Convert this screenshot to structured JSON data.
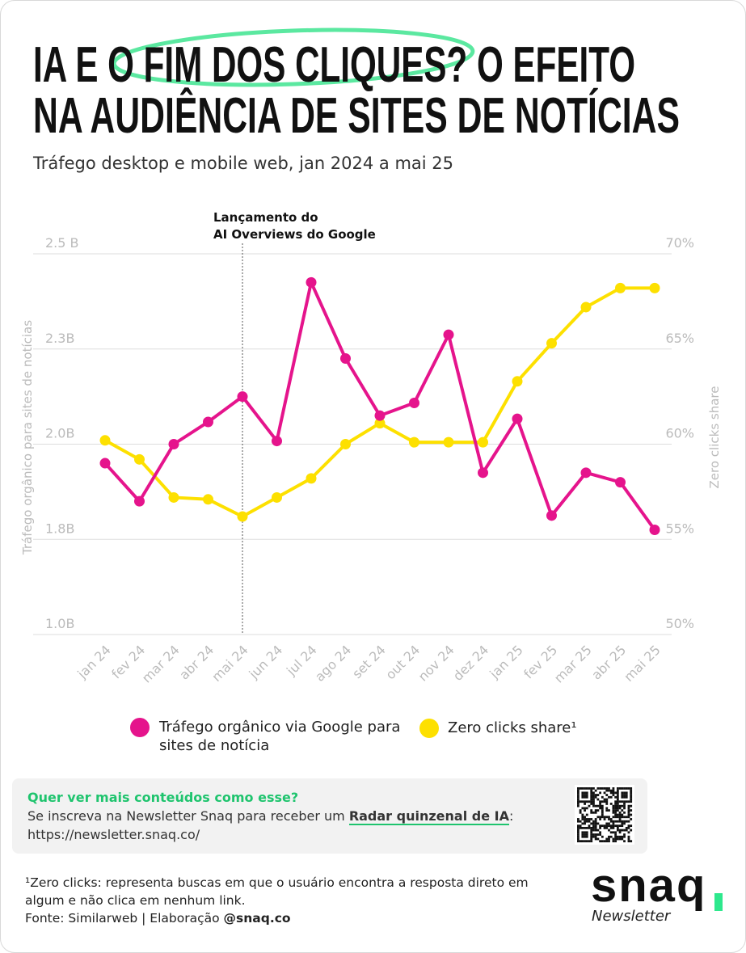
{
  "chart_data": {
    "type": "line",
    "title": [
      "IA E O FIM DOS CLIQUES? O EFEITO",
      "NA AUDIÊNCIA DE SITES DE NOTÍCIAS"
    ],
    "subtitle": "Tráfego desktop e mobile web, jan 2024 a mai 25",
    "ylabel": "Tráfego orgânico para sites de notícias",
    "y2label": "Zero clicks share",
    "annotation": {
      "text": [
        "Lançamento do",
        "AI Overviews do Google"
      ],
      "x": "mai 24"
    },
    "categories": [
      "jan 24",
      "fev 24",
      "mar 24",
      "abr 24",
      "mai 24",
      "jun 24",
      "jul 24",
      "ago 24",
      "set 24",
      "out 24",
      "nov 24",
      "dez 24",
      "jan 25",
      "fev 25",
      "mar 25",
      "abr 25",
      "mai 25"
    ],
    "series": [
      {
        "name": "Tráfego orgânico via Google para sites de notícia",
        "color": "#e5148c",
        "axis": "y",
        "values": [
          1.96,
          1.88,
          2.0,
          2.07,
          2.15,
          2.01,
          2.44,
          2.27,
          2.09,
          2.13,
          2.33,
          1.94,
          2.08,
          1.85,
          1.94,
          1.92,
          1.82
        ]
      },
      {
        "name": "Zero clicks share¹",
        "color": "#fde000",
        "axis": "y2",
        "values": [
          60.2,
          59.2,
          57.2,
          57.1,
          56.2,
          57.2,
          58.2,
          60.0,
          61.1,
          60.1,
          60.1,
          60.1,
          63.3,
          65.3,
          67.2,
          68.2,
          68.2
        ]
      }
    ],
    "ylim": [
      1.0,
      2.5
    ],
    "yticks": [
      {
        "value": 2.5,
        "label": "2.5 B"
      },
      {
        "value": 2.3,
        "label": "2.3B"
      },
      {
        "value": 2.0,
        "label": "2.0B"
      },
      {
        "value": 1.8,
        "label": "1.8B"
      },
      {
        "value": 1.0,
        "label": "1.0B"
      }
    ],
    "y2lim": [
      50,
      70
    ],
    "y2ticks": [
      {
        "value": 70,
        "label": "70%"
      },
      {
        "value": 65,
        "label": "65%"
      },
      {
        "value": 60,
        "label": "60%"
      },
      {
        "value": 55,
        "label": "55%"
      },
      {
        "value": 50,
        "label": "50%"
      }
    ],
    "grid": true
  },
  "cta": {
    "heading": "Quer ver mais conteúdos como esse?",
    "text": "Se inscreva na Newsletter Snaq para receber um",
    "highlight": "Radar quinzenal de IA",
    "after": ":",
    "url": "https://newsletter.snaq.co/"
  },
  "footer": {
    "note": [
      "¹Zero clicks: representa buscas em que o usuário encontra a resposta direto em",
      "algum e não clica em nenhum link."
    ],
    "source": "Fonte: Similarweb | Elaboração",
    "handle": "@snaq.co",
    "logo": "snaq",
    "logo_sub": "Newsletter"
  }
}
